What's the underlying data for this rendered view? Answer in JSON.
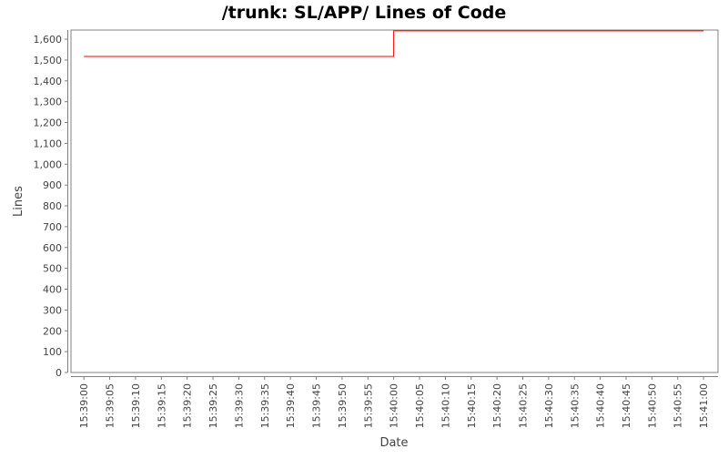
{
  "chart_data": {
    "type": "line",
    "step": true,
    "title": "/trunk: SL/APP/ Lines of Code",
    "xlabel": "Date",
    "ylabel": "Lines",
    "x_ticks": [
      "15:39:00",
      "15:39:05",
      "15:39:10",
      "15:39:15",
      "15:39:20",
      "15:39:25",
      "15:39:30",
      "15:39:35",
      "15:39:40",
      "15:39:45",
      "15:39:50",
      "15:39:55",
      "15:40:00",
      "15:40:05",
      "15:40:10",
      "15:40:15",
      "15:40:20",
      "15:40:25",
      "15:40:30",
      "15:40:35",
      "15:40:40",
      "15:40:45",
      "15:40:50",
      "15:40:55",
      "15:41:00"
    ],
    "y_ticks": [
      "0",
      "100",
      "200",
      "300",
      "400",
      "500",
      "600",
      "700",
      "800",
      "900",
      "1,000",
      "1,100",
      "1,200",
      "1,300",
      "1,400",
      "1,500",
      "1,600"
    ],
    "ylim": [
      0,
      1644
    ],
    "xlim": [
      "15:38:57.5",
      "15:41:02.8"
    ],
    "grid": false,
    "series": [
      {
        "color": "#ff0000",
        "points": [
          [
            "15:39:00",
            1517
          ],
          [
            "15:40:00",
            1517
          ],
          [
            "15:40:00",
            1640
          ],
          [
            "15:41:00",
            1640
          ]
        ]
      }
    ]
  }
}
